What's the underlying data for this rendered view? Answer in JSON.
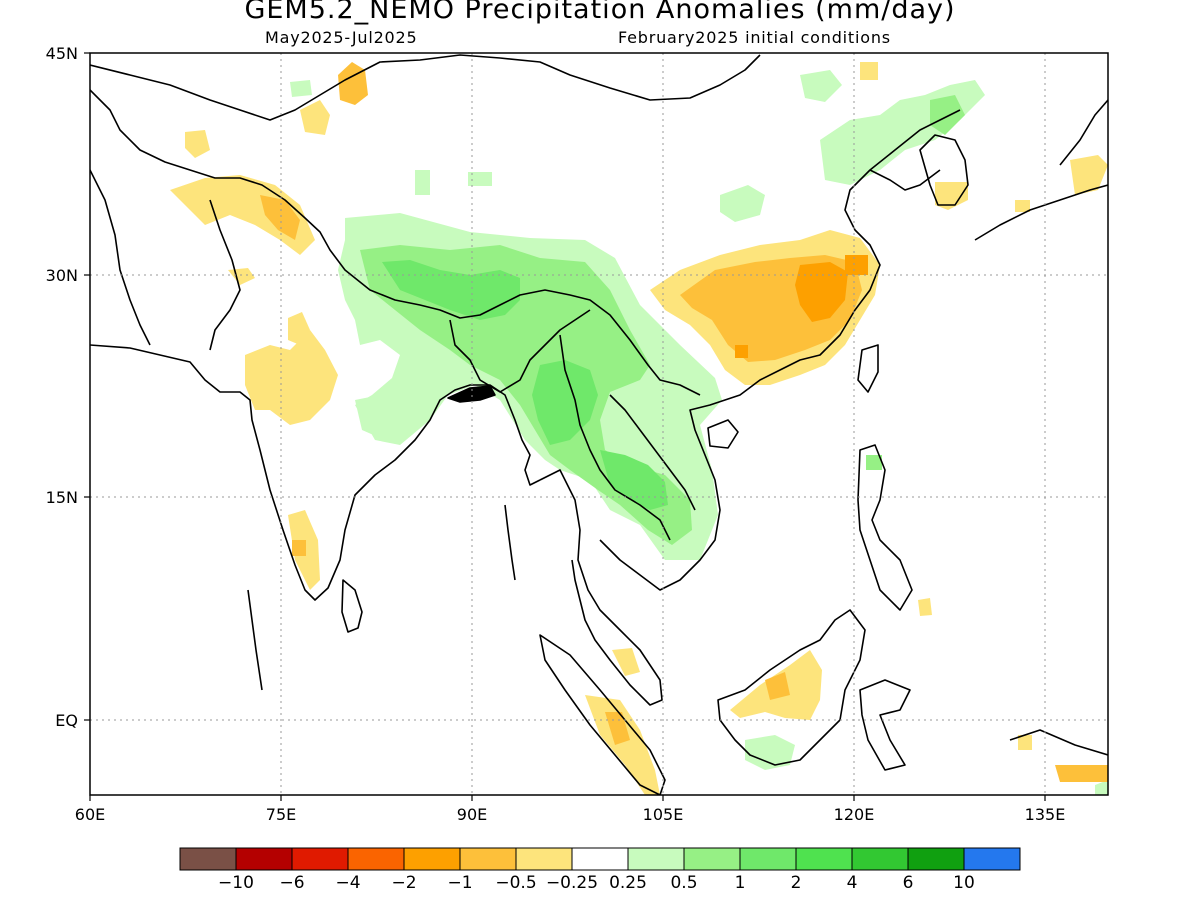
{
  "title": "GEM5.2_NEMO Precipitation Anomalies (mm/day)",
  "subtitle_left": "May2025-Jul2025",
  "subtitle_right": "February2025 initial conditions",
  "lat_labels": [
    "45N",
    "30N",
    "15N",
    "EQ"
  ],
  "lon_labels": [
    "60E",
    "75E",
    "90E",
    "105E",
    "120E",
    "135E"
  ],
  "map_extent": {
    "lon_min": 60,
    "lon_max": 140,
    "lat_min": -5,
    "lat_max": 45
  },
  "colorbar": {
    "colors": [
      "#7a5046",
      "#b40000",
      "#e01a00",
      "#fa6400",
      "#fda000",
      "#fdc03a",
      "#fde47c",
      "#ffffff",
      "#c8fbbe",
      "#96f085",
      "#6fe86a",
      "#4fe24f",
      "#32c832",
      "#10a010",
      "#2478ee"
    ],
    "labels": [
      "-10",
      "-6",
      "-4",
      "-2",
      "-1",
      "-0.5",
      "-0.25",
      "0.25",
      "0.5",
      "1",
      "2",
      "4",
      "6",
      "10"
    ]
  }
}
